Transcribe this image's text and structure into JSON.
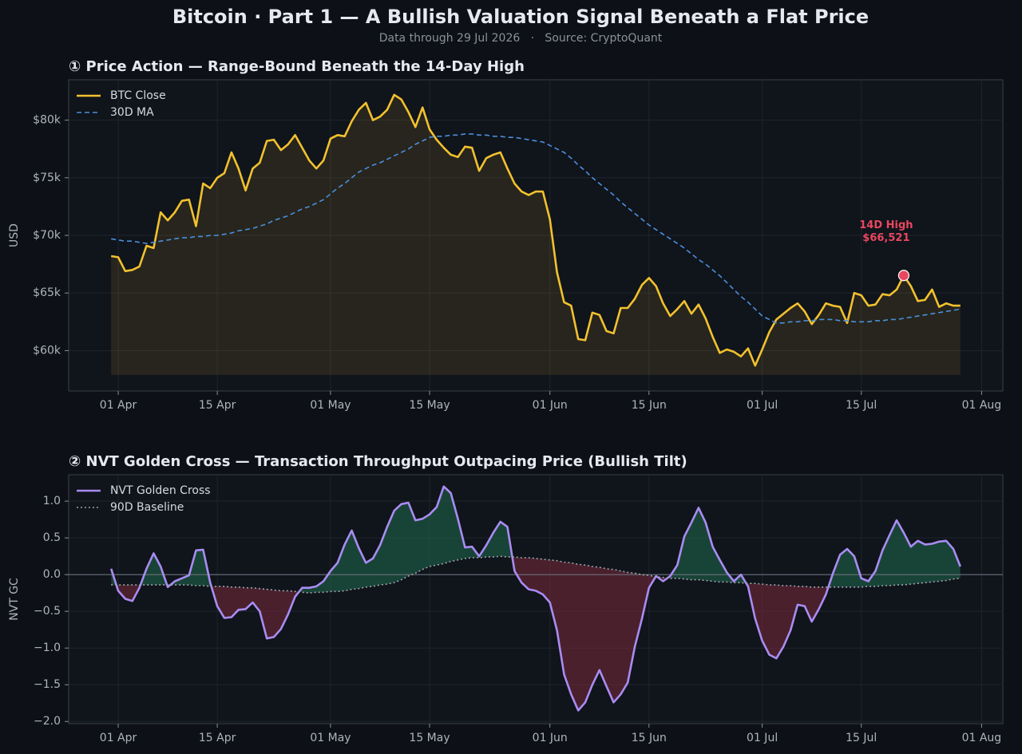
{
  "title": "Bitcoin · Part 1 — A Bullish Valuation Signal Beneath a Flat Price",
  "subtitle": "Data through 29 Jul 2026   ·   Source: CryptoQuant",
  "chart_data": [
    {
      "type": "line",
      "title": "① Price Action — Range-Bound Beneath the 14-Day High",
      "ylabel": "USD",
      "x": [
        "2026-03-31",
        "2026-04-01",
        "2026-04-02",
        "2026-04-03",
        "2026-04-04",
        "2026-04-05",
        "2026-04-06",
        "2026-04-07",
        "2026-04-08",
        "2026-04-09",
        "2026-04-10",
        "2026-04-11",
        "2026-04-12",
        "2026-04-13",
        "2026-04-14",
        "2026-04-15",
        "2026-04-16",
        "2026-04-17",
        "2026-04-18",
        "2026-04-19",
        "2026-04-20",
        "2026-04-21",
        "2026-04-22",
        "2026-04-23",
        "2026-04-24",
        "2026-04-25",
        "2026-04-26",
        "2026-04-27",
        "2026-04-28",
        "2026-04-29",
        "2026-04-30",
        "2026-05-01",
        "2026-05-02",
        "2026-05-03",
        "2026-05-04",
        "2026-05-05",
        "2026-05-06",
        "2026-05-07",
        "2026-05-08",
        "2026-05-09",
        "2026-05-10",
        "2026-05-11",
        "2026-05-12",
        "2026-05-13",
        "2026-05-14",
        "2026-05-15",
        "2026-05-16",
        "2026-05-17",
        "2026-05-18",
        "2026-05-19",
        "2026-05-20",
        "2026-05-21",
        "2026-05-22",
        "2026-05-23",
        "2026-05-24",
        "2026-05-25",
        "2026-05-26",
        "2026-05-27",
        "2026-05-28",
        "2026-05-29",
        "2026-05-30",
        "2026-05-31",
        "2026-06-01",
        "2026-06-02",
        "2026-06-03",
        "2026-06-04",
        "2026-06-05",
        "2026-06-06",
        "2026-06-07",
        "2026-06-08",
        "2026-06-09",
        "2026-06-10",
        "2026-06-11",
        "2026-06-12",
        "2026-06-13",
        "2026-06-14",
        "2026-06-15",
        "2026-06-16",
        "2026-06-17",
        "2026-06-18",
        "2026-06-19",
        "2026-06-20",
        "2026-06-21",
        "2026-06-22",
        "2026-06-23",
        "2026-06-24",
        "2026-06-25",
        "2026-06-26",
        "2026-06-27",
        "2026-06-28",
        "2026-06-29",
        "2026-06-30",
        "2026-07-01",
        "2026-07-02",
        "2026-07-03",
        "2026-07-04",
        "2026-07-05",
        "2026-07-06",
        "2026-07-07",
        "2026-07-08",
        "2026-07-09",
        "2026-07-10",
        "2026-07-11",
        "2026-07-12",
        "2026-07-13",
        "2026-07-14",
        "2026-07-15",
        "2026-07-16",
        "2026-07-17",
        "2026-07-18",
        "2026-07-19",
        "2026-07-20",
        "2026-07-21",
        "2026-07-22",
        "2026-07-23",
        "2026-07-24",
        "2026-07-25",
        "2026-07-26",
        "2026-07-27",
        "2026-07-28",
        "2026-07-29"
      ],
      "series": [
        {
          "name": "BTC Close",
          "color": "#f2c12e",
          "style": "solid",
          "fill": true,
          "values": [
            68200,
            68100,
            66900,
            67000,
            67300,
            69100,
            68900,
            72000,
            71300,
            72000,
            73000,
            73100,
            70800,
            74500,
            74100,
            75000,
            75400,
            77200,
            75800,
            73900,
            75800,
            76300,
            78200,
            78300,
            77400,
            77900,
            78700,
            77600,
            76500,
            75800,
            76500,
            78400,
            78700,
            78600,
            79900,
            80900,
            81500,
            80000,
            80300,
            80900,
            82200,
            81800,
            80700,
            79400,
            81100,
            79200,
            78300,
            77600,
            77000,
            76800,
            77700,
            77600,
            75600,
            76700,
            77000,
            77200,
            75800,
            74500,
            73800,
            73500,
            73800,
            73800,
            71400,
            66800,
            64200,
            63900,
            61000,
            60900,
            63300,
            63100,
            61700,
            61500,
            63700,
            63700,
            64500,
            65700,
            66300,
            65600,
            64100,
            63000,
            63600,
            64300,
            63200,
            64000,
            62800,
            61200,
            59800,
            60100,
            59900,
            59500,
            60200,
            58700,
            60100,
            61600,
            62700,
            63200,
            63700,
            64100,
            63400,
            62300,
            63100,
            64100,
            63900,
            63800,
            62400,
            65000,
            64800,
            63900,
            64000,
            64900,
            64800,
            65300,
            66521,
            65600,
            64300,
            64400,
            65300,
            63800,
            64100,
            63900,
            63900
          ]
        },
        {
          "name": "30D MA",
          "color": "#4a8fdc",
          "style": "dashed",
          "fill": false,
          "values": [
            69700,
            69600,
            69500,
            69500,
            69400,
            69300,
            69400,
            69500,
            69600,
            69700,
            69800,
            69800,
            69900,
            69900,
            70000,
            70000,
            70100,
            70200,
            70400,
            70500,
            70600,
            70800,
            71000,
            71300,
            71500,
            71700,
            72000,
            72300,
            72500,
            72800,
            73100,
            73600,
            74100,
            74500,
            75000,
            75500,
            75800,
            76100,
            76300,
            76600,
            76900,
            77200,
            77500,
            77900,
            78200,
            78500,
            78600,
            78600,
            78700,
            78700,
            78800,
            78800,
            78700,
            78700,
            78600,
            78600,
            78500,
            78500,
            78400,
            78300,
            78200,
            78100,
            77800,
            77500,
            77200,
            76700,
            76100,
            75600,
            75000,
            74500,
            74000,
            73500,
            72900,
            72400,
            71900,
            71400,
            70900,
            70500,
            70100,
            69700,
            69300,
            68900,
            68400,
            67900,
            67500,
            67000,
            66500,
            65900,
            65300,
            64700,
            64200,
            63600,
            63000,
            62700,
            62400,
            62400,
            62500,
            62500,
            62600,
            62600,
            62700,
            62700,
            62700,
            62600,
            62600,
            62500,
            62500,
            62500,
            62600,
            62600,
            62700,
            62700,
            62800,
            62900,
            63000,
            63100,
            63200,
            63300,
            63400,
            63500,
            63600
          ]
        }
      ],
      "xlim": [
        "2026-03-25",
        "2026-08-04"
      ],
      "xticks": [
        {
          "value": "2026-04-01",
          "label": "01 Apr"
        },
        {
          "value": "2026-04-15",
          "label": "15 Apr"
        },
        {
          "value": "2026-05-01",
          "label": "01 May"
        },
        {
          "value": "2026-05-15",
          "label": "15 May"
        },
        {
          "value": "2026-06-01",
          "label": "01 Jun"
        },
        {
          "value": "2026-06-15",
          "label": "15 Jun"
        },
        {
          "value": "2026-07-01",
          "label": "01 Jul"
        },
        {
          "value": "2026-07-15",
          "label": "15 Jul"
        },
        {
          "value": "2026-08-01",
          "label": "01 Aug"
        }
      ],
      "ylim": [
        56500,
        83500
      ],
      "yticks": [
        {
          "value": 60000,
          "label": "$60k"
        },
        {
          "value": 65000,
          "label": "$65k"
        },
        {
          "value": 70000,
          "label": "$70k"
        },
        {
          "value": 75000,
          "label": "$75k"
        },
        {
          "value": 80000,
          "label": "$80k"
        }
      ],
      "grid": true,
      "legend": "upper left",
      "annotations": [
        {
          "x": "2026-07-21",
          "value": 66521,
          "label": "14D High",
          "text": "$66,521",
          "color": "#e8475f"
        }
      ]
    },
    {
      "type": "line",
      "title": "② NVT Golden Cross — Transaction Throughput Outpacing Price (Bullish Tilt)",
      "ylabel": "NVT GC",
      "x": [
        "2026-03-31",
        "2026-04-01",
        "2026-04-02",
        "2026-04-03",
        "2026-04-04",
        "2026-04-05",
        "2026-04-06",
        "2026-04-07",
        "2026-04-08",
        "2026-04-09",
        "2026-04-10",
        "2026-04-11",
        "2026-04-12",
        "2026-04-13",
        "2026-04-14",
        "2026-04-15",
        "2026-04-16",
        "2026-04-17",
        "2026-04-18",
        "2026-04-19",
        "2026-04-20",
        "2026-04-21",
        "2026-04-22",
        "2026-04-23",
        "2026-04-24",
        "2026-04-25",
        "2026-04-26",
        "2026-04-27",
        "2026-04-28",
        "2026-04-29",
        "2026-04-30",
        "2026-05-01",
        "2026-05-02",
        "2026-05-03",
        "2026-05-04",
        "2026-05-05",
        "2026-05-06",
        "2026-05-07",
        "2026-05-08",
        "2026-05-09",
        "2026-05-10",
        "2026-05-11",
        "2026-05-12",
        "2026-05-13",
        "2026-05-14",
        "2026-05-15",
        "2026-05-16",
        "2026-05-17",
        "2026-05-18",
        "2026-05-19",
        "2026-05-20",
        "2026-05-21",
        "2026-05-22",
        "2026-05-23",
        "2026-05-24",
        "2026-05-25",
        "2026-05-26",
        "2026-05-27",
        "2026-05-28",
        "2026-05-29",
        "2026-05-30",
        "2026-05-31",
        "2026-06-01",
        "2026-06-02",
        "2026-06-03",
        "2026-06-04",
        "2026-06-05",
        "2026-06-06",
        "2026-06-07",
        "2026-06-08",
        "2026-06-09",
        "2026-06-10",
        "2026-06-11",
        "2026-06-12",
        "2026-06-13",
        "2026-06-14",
        "2026-06-15",
        "2026-06-16",
        "2026-06-17",
        "2026-06-18",
        "2026-06-19",
        "2026-06-20",
        "2026-06-21",
        "2026-06-22",
        "2026-06-23",
        "2026-06-24",
        "2026-06-25",
        "2026-06-26",
        "2026-06-27",
        "2026-06-28",
        "2026-06-29",
        "2026-06-30",
        "2026-07-01",
        "2026-07-02",
        "2026-07-03",
        "2026-07-04",
        "2026-07-05",
        "2026-07-06",
        "2026-07-07",
        "2026-07-08",
        "2026-07-09",
        "2026-07-10",
        "2026-07-11",
        "2026-07-12",
        "2026-07-13",
        "2026-07-14",
        "2026-07-15",
        "2026-07-16",
        "2026-07-17",
        "2026-07-18",
        "2026-07-19",
        "2026-07-20",
        "2026-07-21",
        "2026-07-22",
        "2026-07-23",
        "2026-07-24",
        "2026-07-25",
        "2026-07-26",
        "2026-07-27",
        "2026-07-28",
        "2026-07-29"
      ],
      "series": [
        {
          "name": "NVT Golden Cross",
          "color": "#a98cf2",
          "style": "solid",
          "values": [
            0.08,
            -0.22,
            -0.33,
            -0.36,
            -0.18,
            0.08,
            0.29,
            0.11,
            -0.17,
            -0.09,
            -0.05,
            -0.01,
            0.33,
            0.34,
            -0.11,
            -0.43,
            -0.59,
            -0.58,
            -0.48,
            -0.47,
            -0.38,
            -0.5,
            -0.87,
            -0.85,
            -0.74,
            -0.54,
            -0.3,
            -0.18,
            -0.18,
            -0.16,
            -0.09,
            0.05,
            0.16,
            0.41,
            0.6,
            0.36,
            0.16,
            0.22,
            0.4,
            0.65,
            0.87,
            0.96,
            0.98,
            0.74,
            0.76,
            0.82,
            0.92,
            1.2,
            1.11,
            0.76,
            0.37,
            0.38,
            0.25,
            0.4,
            0.57,
            0.72,
            0.65,
            0.05,
            -0.11,
            -0.2,
            -0.22,
            -0.27,
            -0.38,
            -0.76,
            -1.36,
            -1.63,
            -1.85,
            -1.74,
            -1.5,
            -1.3,
            -1.52,
            -1.74,
            -1.63,
            -1.47,
            -0.98,
            -0.6,
            -0.18,
            -0.02,
            -0.09,
            -0.02,
            0.13,
            0.52,
            0.71,
            0.91,
            0.71,
            0.38,
            0.2,
            0.03,
            -0.09,
            0.0,
            -0.16,
            -0.6,
            -0.9,
            -1.09,
            -1.14,
            -0.98,
            -0.76,
            -0.41,
            -0.43,
            -0.64,
            -0.47,
            -0.27,
            0.02,
            0.27,
            0.35,
            0.25,
            -0.05,
            -0.09,
            0.05,
            0.33,
            0.54,
            0.74,
            0.57,
            0.38,
            0.46,
            0.41,
            0.42,
            0.45,
            0.46,
            0.35,
            0.11
          ]
        },
        {
          "name": "90D Baseline",
          "color": "#9aa3ad",
          "style": "dotted",
          "values": [
            -0.14,
            -0.14,
            -0.14,
            -0.14,
            -0.14,
            -0.14,
            -0.14,
            -0.14,
            -0.14,
            -0.14,
            -0.14,
            -0.14,
            -0.15,
            -0.15,
            -0.16,
            -0.16,
            -0.16,
            -0.17,
            -0.17,
            -0.18,
            -0.18,
            -0.19,
            -0.2,
            -0.21,
            -0.22,
            -0.22,
            -0.23,
            -0.24,
            -0.25,
            -0.24,
            -0.24,
            -0.23,
            -0.23,
            -0.22,
            -0.2,
            -0.19,
            -0.17,
            -0.16,
            -0.14,
            -0.13,
            -0.11,
            -0.07,
            -0.02,
            0.02,
            0.07,
            0.11,
            0.13,
            0.15,
            0.18,
            0.2,
            0.22,
            0.23,
            0.23,
            0.24,
            0.24,
            0.25,
            0.24,
            0.24,
            0.23,
            0.23,
            0.22,
            0.21,
            0.2,
            0.19,
            0.17,
            0.16,
            0.14,
            0.13,
            0.11,
            0.1,
            0.08,
            0.07,
            0.05,
            0.03,
            0.02,
            0.0,
            -0.01,
            -0.03,
            -0.04,
            -0.05,
            -0.05,
            -0.06,
            -0.07,
            -0.07,
            -0.08,
            -0.09,
            -0.1,
            -0.1,
            -0.11,
            -0.11,
            -0.12,
            -0.12,
            -0.13,
            -0.14,
            -0.14,
            -0.15,
            -0.15,
            -0.16,
            -0.16,
            -0.17,
            -0.17,
            -0.17,
            -0.17,
            -0.17,
            -0.17,
            -0.17,
            -0.17,
            -0.16,
            -0.16,
            -0.15,
            -0.15,
            -0.14,
            -0.14,
            -0.13,
            -0.12,
            -0.11,
            -0.1,
            -0.09,
            -0.08,
            -0.06,
            -0.05
          ]
        }
      ],
      "fill_between": {
        "above_color": "#1f6b4f",
        "below_color": "#7a2a3c"
      },
      "zero_line": true,
      "xlim": [
        "2026-03-25",
        "2026-08-04"
      ],
      "xticks": [
        {
          "value": "2026-04-01",
          "label": "01 Apr"
        },
        {
          "value": "2026-04-15",
          "label": "15 Apr"
        },
        {
          "value": "2026-05-01",
          "label": "01 May"
        },
        {
          "value": "2026-05-15",
          "label": "15 May"
        },
        {
          "value": "2026-06-01",
          "label": "01 Jun"
        },
        {
          "value": "2026-06-15",
          "label": "15 Jun"
        },
        {
          "value": "2026-07-01",
          "label": "01 Jul"
        },
        {
          "value": "2026-07-15",
          "label": "15 Jul"
        },
        {
          "value": "2026-08-01",
          "label": "01 Aug"
        }
      ],
      "ylim": [
        -2.03,
        1.36
      ],
      "yticks": [
        {
          "value": -2.0,
          "label": "−2.0"
        },
        {
          "value": -1.5,
          "label": "−1.5"
        },
        {
          "value": -1.0,
          "label": "−1.0"
        },
        {
          "value": -0.5,
          "label": "−0.5"
        },
        {
          "value": 0.0,
          "label": "0.0"
        },
        {
          "value": 0.5,
          "label": "0.5"
        },
        {
          "value": 1.0,
          "label": "1.0"
        }
      ],
      "grid": true,
      "legend": "upper left"
    }
  ]
}
